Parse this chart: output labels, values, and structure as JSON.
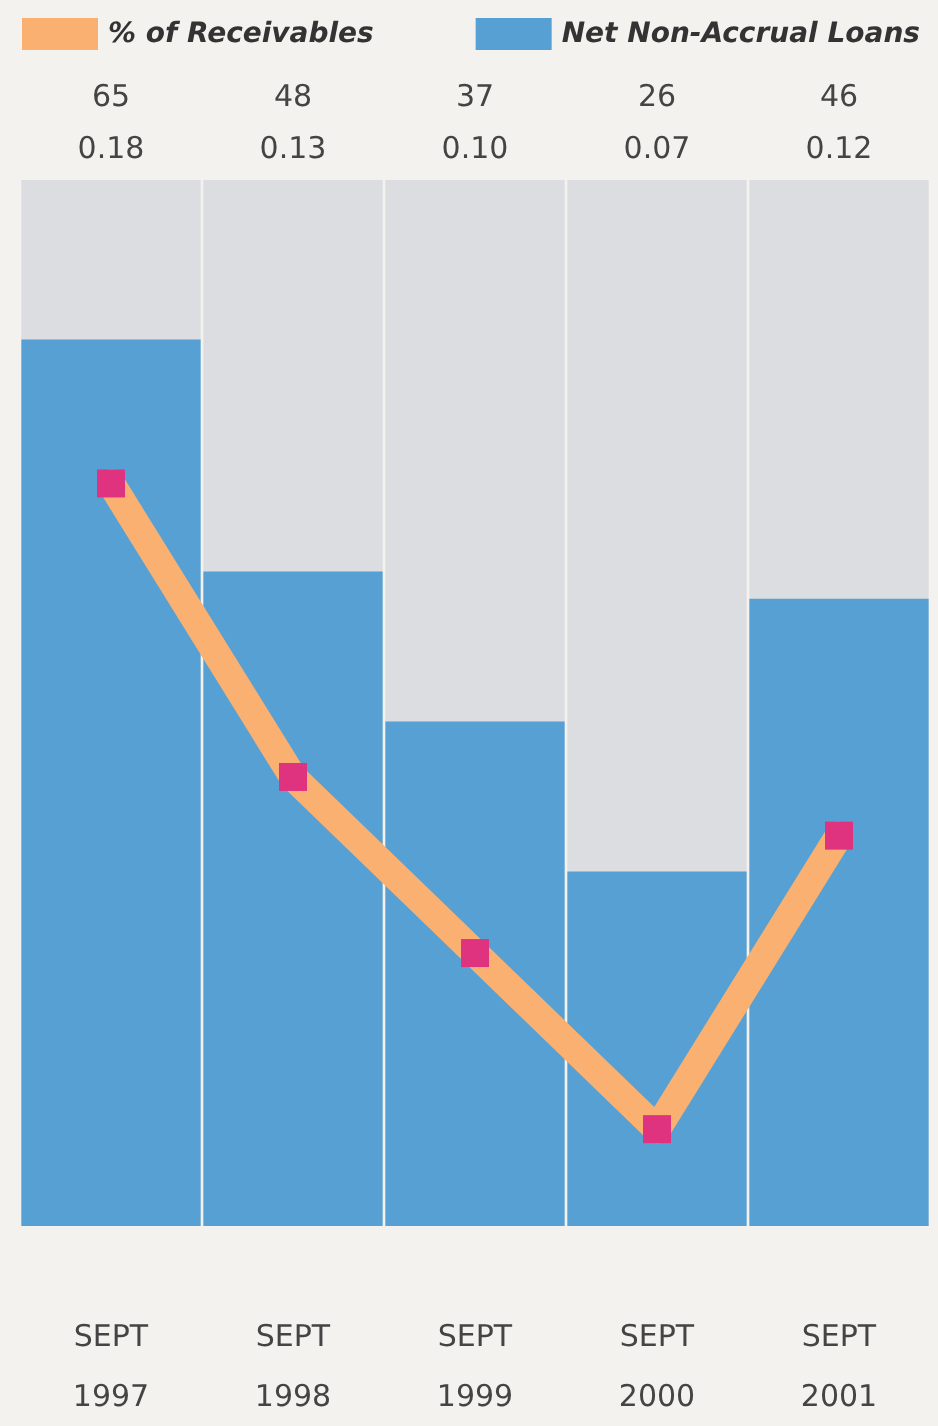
{
  "chart_data": {
    "type": "bar",
    "categories": [
      "SEPT\n1997",
      "SEPT\n1998",
      "SEPT\n1999",
      "SEPT\n2000",
      "SEPT\n2001"
    ],
    "series": [
      {
        "name": "% of Receivables",
        "type": "line",
        "axis": "y2",
        "color": "#f9b071",
        "values": [
          0.18,
          0.13,
          0.1,
          0.07,
          0.12
        ],
        "value_labels": [
          "0.18",
          "0.13",
          "0.10",
          "0.07",
          "0.12"
        ]
      },
      {
        "name": "Net Non-Accrual Loans",
        "color": "#56a0d3",
        "values": [
          65,
          48,
          37,
          26,
          46
        ],
        "value_labels": [
          "65",
          "48",
          "37",
          "26",
          "46"
        ]
      }
    ],
    "marker": "square",
    "legend": "top",
    "grid": false
  }
}
